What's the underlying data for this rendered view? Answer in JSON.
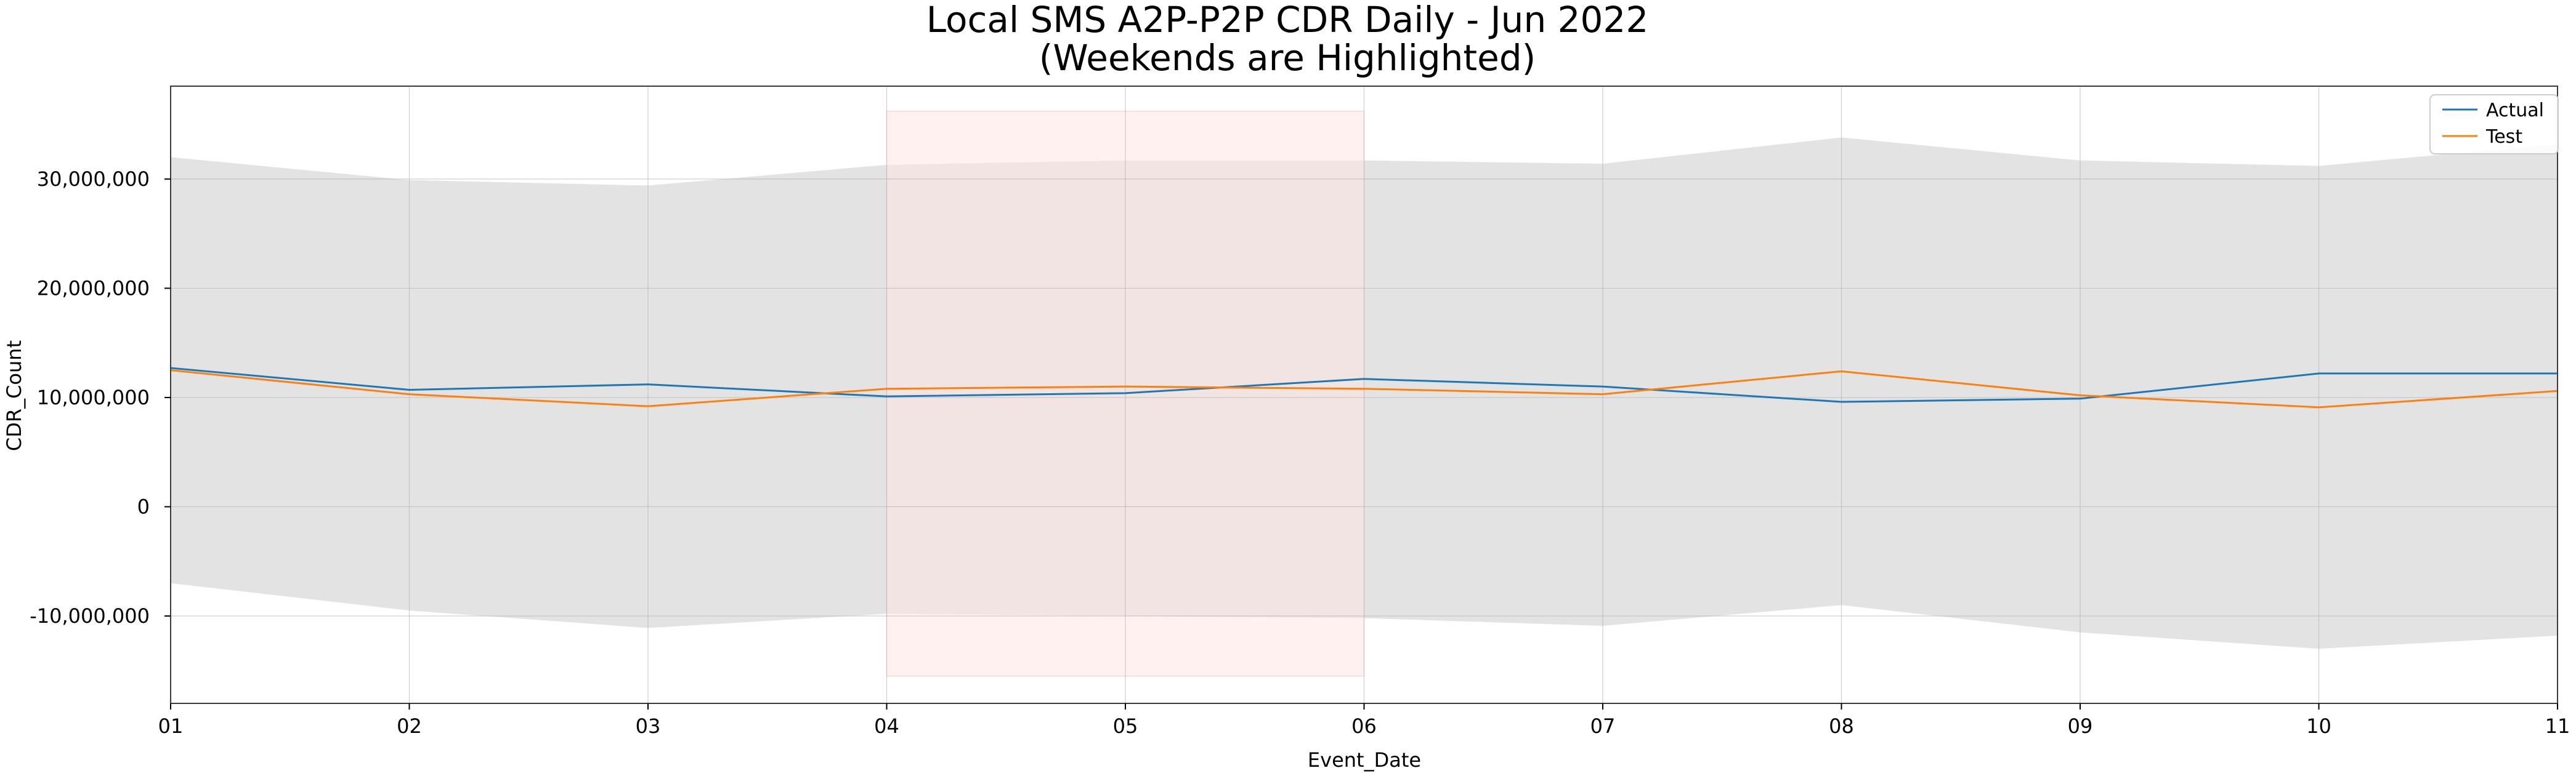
{
  "chart_data": {
    "type": "line",
    "title": "Local SMS A2P-P2P CDR Daily - Jun 2022",
    "subtitle": "(Weekends are Highlighted)",
    "xlabel": "Event_Date",
    "ylabel": "CDR_Count",
    "categories": [
      "01",
      "02",
      "03",
      "04",
      "05",
      "06",
      "07",
      "08",
      "09",
      "10",
      "11"
    ],
    "ylim": [
      -18000000,
      38500000
    ],
    "yticks": [
      -10000000,
      0,
      10000000,
      20000000,
      30000000
    ],
    "ytick_labels": [
      "-10,000,000",
      "0",
      "10,000,000",
      "20,000,000",
      "30,000,000"
    ],
    "grid": true,
    "legend_position": "top-right",
    "series": [
      {
        "name": "Actual",
        "color": "#1f77b4",
        "values": [
          12700000,
          10700000,
          11200000,
          10100000,
          10400000,
          11700000,
          11000000,
          9600000,
          9900000,
          12200000,
          12200000
        ]
      },
      {
        "name": "Test",
        "color": "#ff7f0e",
        "values": [
          12500000,
          10300000,
          9200000,
          10800000,
          11000000,
          10800000,
          10300000,
          12400000,
          10200000,
          9100000,
          10600000
        ]
      }
    ],
    "confidence_band": {
      "color": "#e3e3e3",
      "upper": [
        32000000,
        29900000,
        29400000,
        31300000,
        31700000,
        31700000,
        31400000,
        33800000,
        31700000,
        31200000,
        33200000
      ],
      "lower": [
        -7000000,
        -9500000,
        -11100000,
        -9800000,
        -10000000,
        -10200000,
        -10900000,
        -9000000,
        -11500000,
        -13000000,
        -11800000
      ]
    },
    "weekend_highlight": {
      "color": "#fde6e4",
      "x_start": "04",
      "x_end": "06",
      "y_range": [
        -15500000,
        36200000
      ]
    }
  }
}
